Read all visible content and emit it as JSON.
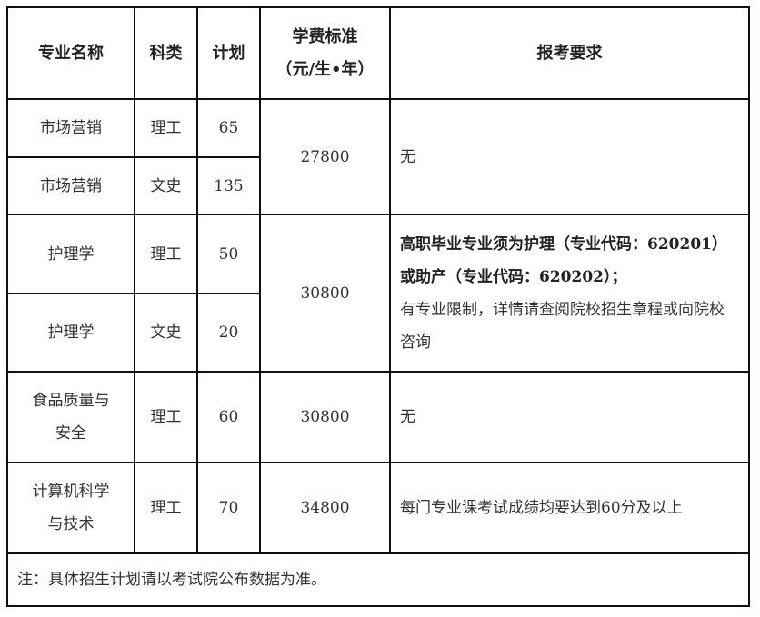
{
  "headers": {
    "major": "专业名称",
    "category": "科类",
    "plan": "计划",
    "tuition_line1": "学费标准",
    "tuition_line2": "（元/生•年）",
    "requirements": "报考要求"
  },
  "rows": [
    {
      "major": "市场营销",
      "category": "理工",
      "plan": "65"
    },
    {
      "major": "市场营销",
      "category": "文史",
      "plan": "135"
    },
    {
      "major": "护理学",
      "category": "理工",
      "plan": "50"
    },
    {
      "major": "护理学",
      "category": "文史",
      "plan": "20"
    },
    {
      "major_line1": "食品质量与",
      "major_line2": "安全",
      "category": "理工",
      "plan": "60"
    },
    {
      "major_line1": "计算机科学",
      "major_line2": "与技术",
      "category": "理工",
      "plan": "70"
    }
  ],
  "groups": [
    {
      "tuition": "27800",
      "requirement": "无"
    },
    {
      "tuition": "30800",
      "requirement_bold": "高职毕业专业须为护理（专业代码：620201）或助产（专业代码：620202）；",
      "requirement": "有专业限制，详情请查阅院校招生章程或向院校咨询"
    },
    {
      "tuition": "30800",
      "requirement": "无"
    },
    {
      "tuition": "34800",
      "requirement": "每门专业课考试成绩均要达到60分及以上"
    }
  ],
  "note": "注：具体招生计划请以考试院公布数据为准。"
}
